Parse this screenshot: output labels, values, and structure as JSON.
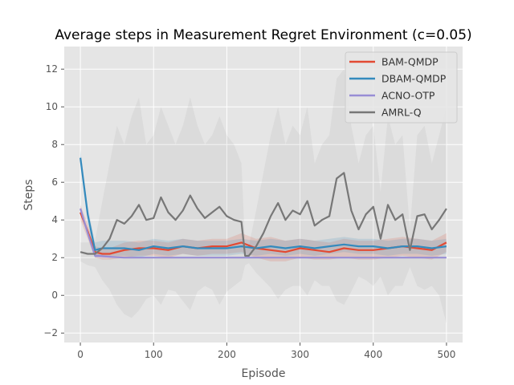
{
  "chart_data": {
    "type": "line",
    "title": "Average steps in Measurement Regret Environment (c=0.05)",
    "xlabel": "Episode",
    "ylabel": "Steps",
    "xlim": [
      -22,
      522
    ],
    "ylim": [
      -2.5,
      13.2
    ],
    "xticks": [
      0,
      100,
      200,
      300,
      400,
      500
    ],
    "yticks": [
      -2,
      0,
      2,
      4,
      6,
      8,
      10,
      12
    ],
    "grid": true,
    "legend_position": "top-right",
    "series": [
      {
        "name": "BAM-QMDP",
        "color": "#E24A33",
        "x": [
          0,
          10,
          20,
          30,
          40,
          60,
          80,
          100,
          120,
          140,
          160,
          180,
          200,
          220,
          240,
          260,
          280,
          300,
          320,
          340,
          360,
          380,
          400,
          420,
          440,
          460,
          480,
          500
        ],
        "values": [
          4.4,
          3.4,
          2.3,
          2.2,
          2.2,
          2.4,
          2.5,
          2.5,
          2.4,
          2.6,
          2.5,
          2.6,
          2.6,
          2.8,
          2.5,
          2.4,
          2.3,
          2.5,
          2.4,
          2.3,
          2.5,
          2.4,
          2.4,
          2.5,
          2.6,
          2.5,
          2.4,
          2.8
        ],
        "band_low": [
          4.0,
          3.0,
          2.0,
          1.9,
          1.9,
          2.0,
          2.1,
          2.1,
          2.0,
          2.2,
          2.1,
          2.2,
          2.2,
          2.3,
          2.0,
          1.8,
          1.8,
          2.0,
          1.9,
          1.9,
          2.0,
          1.9,
          1.9,
          2.0,
          2.1,
          2.0,
          1.9,
          2.3
        ],
        "band_high": [
          4.8,
          3.8,
          2.6,
          2.5,
          2.5,
          2.8,
          2.9,
          2.9,
          2.8,
          3.0,
          2.9,
          3.0,
          3.0,
          3.3,
          3.0,
          3.1,
          2.9,
          3.0,
          2.9,
          2.8,
          3.0,
          2.9,
          2.9,
          3.0,
          3.1,
          3.0,
          2.9,
          3.3
        ]
      },
      {
        "name": "DBAM-QMDP",
        "color": "#348ABD",
        "x": [
          0,
          10,
          20,
          30,
          40,
          60,
          80,
          100,
          120,
          140,
          160,
          180,
          200,
          220,
          240,
          260,
          280,
          300,
          320,
          340,
          360,
          380,
          400,
          420,
          440,
          460,
          480,
          500
        ],
        "values": [
          7.3,
          4.3,
          2.4,
          2.5,
          2.5,
          2.5,
          2.4,
          2.6,
          2.5,
          2.6,
          2.5,
          2.5,
          2.5,
          2.6,
          2.5,
          2.6,
          2.5,
          2.6,
          2.5,
          2.6,
          2.7,
          2.6,
          2.6,
          2.5,
          2.6,
          2.6,
          2.5,
          2.6
        ],
        "band_low": [
          6.9,
          3.9,
          2.0,
          2.1,
          2.1,
          2.1,
          2.0,
          2.2,
          2.1,
          2.2,
          2.1,
          2.1,
          2.1,
          2.2,
          2.1,
          2.2,
          2.1,
          2.2,
          2.1,
          2.2,
          2.3,
          2.2,
          2.2,
          2.1,
          2.2,
          2.2,
          2.1,
          2.2
        ],
        "band_high": [
          7.7,
          4.7,
          2.8,
          2.9,
          2.9,
          2.9,
          2.8,
          3.0,
          2.9,
          3.0,
          2.9,
          2.9,
          2.9,
          3.0,
          2.9,
          3.0,
          2.9,
          3.0,
          2.9,
          3.0,
          3.1,
          3.0,
          3.0,
          2.9,
          3.0,
          3.0,
          2.9,
          3.0
        ]
      },
      {
        "name": "ACNO-OTP",
        "color": "#988ED5",
        "x": [
          0,
          10,
          20,
          40,
          60,
          80,
          100,
          200,
          300,
          400,
          500
        ],
        "values": [
          4.6,
          3.3,
          2.1,
          2.05,
          2.0,
          2.0,
          2.0,
          2.0,
          2.0,
          2.0,
          2.0
        ],
        "band_low": [
          4.5,
          3.2,
          2.0,
          2.0,
          2.0,
          2.0,
          2.0,
          2.0,
          2.0,
          2.0,
          2.0
        ],
        "band_high": [
          4.7,
          3.4,
          2.2,
          2.1,
          2.0,
          2.0,
          2.0,
          2.0,
          2.0,
          2.0,
          2.0
        ]
      },
      {
        "name": "AMRL-Q",
        "color": "#777777",
        "x": [
          0,
          10,
          20,
          30,
          40,
          50,
          60,
          70,
          80,
          90,
          100,
          110,
          120,
          130,
          140,
          150,
          160,
          170,
          180,
          190,
          200,
          210,
          220,
          225,
          230,
          240,
          250,
          260,
          270,
          280,
          290,
          300,
          310,
          320,
          330,
          340,
          350,
          360,
          370,
          380,
          390,
          400,
          410,
          420,
          430,
          440,
          450,
          460,
          470,
          480,
          490,
          500
        ],
        "values": [
          2.3,
          2.2,
          2.2,
          2.5,
          3.0,
          4.0,
          3.8,
          4.2,
          4.8,
          4.0,
          4.1,
          5.2,
          4.4,
          4.0,
          4.5,
          5.3,
          4.6,
          4.1,
          4.4,
          4.7,
          4.2,
          4.0,
          3.9,
          2.1,
          2.1,
          2.6,
          3.3,
          4.2,
          4.9,
          4.0,
          4.5,
          4.3,
          5.0,
          3.7,
          4.0,
          4.2,
          6.2,
          6.5,
          4.5,
          3.5,
          4.3,
          4.7,
          3.0,
          4.8,
          4.0,
          4.3,
          2.4,
          4.2,
          4.3,
          3.5,
          4.0,
          4.6
        ],
        "band_low": [
          1.8,
          1.6,
          1.5,
          0.8,
          0.3,
          -0.5,
          -1.0,
          -1.2,
          -0.8,
          -0.2,
          0.0,
          -0.5,
          0.3,
          0.2,
          -0.3,
          -0.8,
          0.2,
          0.5,
          0.3,
          -0.5,
          0.2,
          0.5,
          0.8,
          1.6,
          1.7,
          1.2,
          0.8,
          0.4,
          -0.2,
          0.3,
          0.5,
          0.5,
          0.0,
          0.8,
          0.5,
          0.5,
          -0.3,
          -0.5,
          0.2,
          1.0,
          0.8,
          0.5,
          1.0,
          0.0,
          0.5,
          0.5,
          1.5,
          0.5,
          0.3,
          0.5,
          0.0,
          -1.5
        ],
        "band_high": [
          2.8,
          2.8,
          2.9,
          5.0,
          7.0,
          9.0,
          8.0,
          9.5,
          10.5,
          8.0,
          8.5,
          10.0,
          9.0,
          8.0,
          9.0,
          10.5,
          9.0,
          8.0,
          8.5,
          9.5,
          8.5,
          8.0,
          7.0,
          2.6,
          2.6,
          4.5,
          6.5,
          8.5,
          10.0,
          8.0,
          9.0,
          8.5,
          10.0,
          7.0,
          8.0,
          8.5,
          11.5,
          12.0,
          9.0,
          7.0,
          8.5,
          9.0,
          5.5,
          9.5,
          8.0,
          8.5,
          3.5,
          8.5,
          9.0,
          7.0,
          8.5,
          10.0
        ]
      }
    ]
  }
}
